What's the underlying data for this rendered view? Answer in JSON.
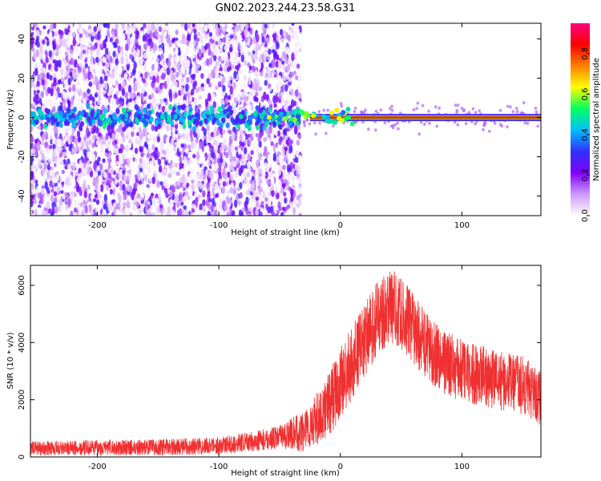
{
  "figure": {
    "title": "GN02.2023.244.23.58.G31"
  },
  "chart_data": [
    {
      "type": "heatmap",
      "xlabel": "Height of straight line (km)",
      "ylabel": "Frequency (Hz)",
      "xlim": [
        -255,
        165
      ],
      "ylim": [
        -50,
        48
      ],
      "x_ticks": [
        -200,
        -100,
        0,
        100
      ],
      "y_ticks": [
        -40,
        -20,
        0,
        20,
        40
      ],
      "grid": false,
      "colorbar": {
        "label": "Normalized spectral amplitude",
        "range": [
          0,
          0.95
        ],
        "ticks": [
          0.0,
          0.2,
          0.4,
          0.6,
          0.8
        ],
        "colormap": [
          "#ffffff",
          "#cc99ff",
          "#8000ff",
          "#3030ff",
          "#00bfff",
          "#00ff60",
          "#ffff00",
          "#ff8000",
          "#ff0000",
          "#ff0080"
        ]
      },
      "features": {
        "noise_region_x": [
          -255,
          -33
        ],
        "tone_region_x": [
          -33,
          165
        ],
        "tone_frequency": 0,
        "tone_amplitude": 0.85
      }
    },
    {
      "type": "line",
      "xlabel": "Height of straight line (km)",
      "ylabel": "SNR (10 * v/v)",
      "xlim": [
        -255,
        165
      ],
      "ylim": [
        0,
        6700
      ],
      "x_ticks": [
        -200,
        -100,
        0,
        100
      ],
      "y_ticks": [
        0,
        2000,
        4000,
        6000
      ],
      "grid": false,
      "series": [
        {
          "color": "#f03030",
          "envelope": {
            "x": [
              -255,
              -200,
              -150,
              -100,
              -70,
              -50,
              -30,
              -15,
              0,
              15,
              30,
              40,
              45,
              55,
              70,
              90,
              110,
              130,
              150,
              165
            ],
            "y": [
              300,
              320,
              340,
              400,
              550,
              700,
              900,
              1500,
              2500,
              3700,
              4800,
              5300,
              5200,
              4800,
              3900,
              3200,
              2900,
              2700,
              2500,
              2100
            ]
          },
          "spread": {
            "x": [
              -255,
              -100,
              -50,
              -20,
              0,
              40,
              100,
              165
            ],
            "y": [
              250,
              300,
              400,
              900,
              1300,
              1300,
              1100,
              1000
            ]
          }
        }
      ]
    }
  ]
}
